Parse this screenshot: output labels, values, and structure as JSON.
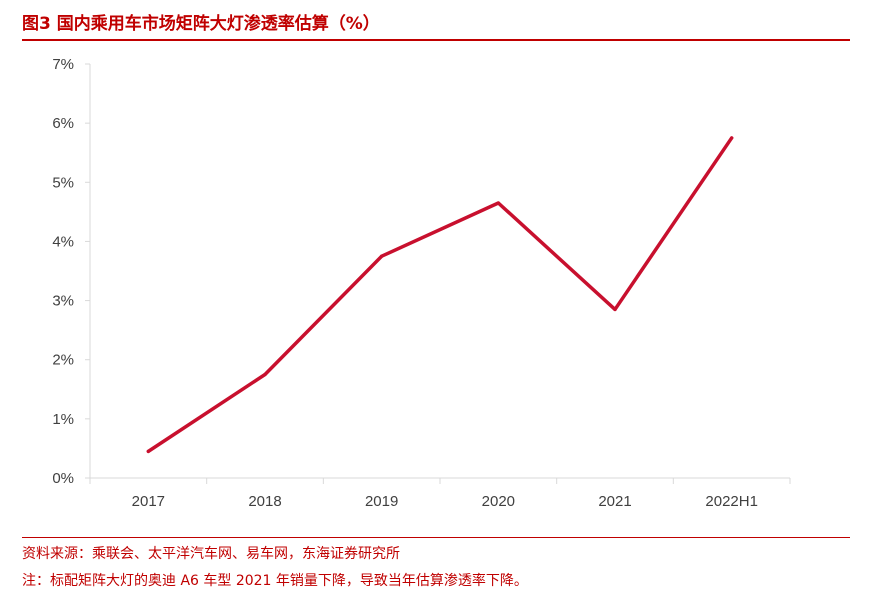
{
  "header": {
    "title": "图3  国内乘用车市场矩阵大灯渗透率估算（%）"
  },
  "footer": {
    "source": "资料来源：乘联会、太平洋汽车网、易车网，东海证券研究所",
    "note": "注：标配矩阵大灯的奥迪 A6 车型 2021 年销量下降，导致当年估算渗透率下降。"
  },
  "colors": {
    "accent": "#c00000",
    "series_line": "#c8102e",
    "axis": "#d9d9d9",
    "tick_text": "#404040"
  },
  "chart_data": {
    "type": "line",
    "categories": [
      "2017",
      "2018",
      "2019",
      "2020",
      "2021",
      "2022H1"
    ],
    "series": [
      {
        "values": [
          0.45,
          1.75,
          3.75,
          4.65,
          2.85,
          5.75
        ]
      }
    ],
    "ylim": [
      0,
      7
    ],
    "yticks": [
      "0%",
      "1%",
      "2%",
      "3%",
      "4%",
      "5%",
      "6%",
      "7%"
    ],
    "grid": false,
    "legend": "none"
  }
}
